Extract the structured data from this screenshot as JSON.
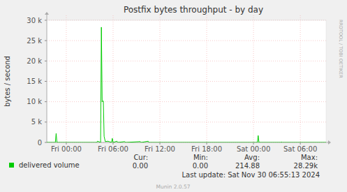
{
  "chart_data": {
    "type": "line",
    "title": "Postfix bytes throughput - by day",
    "y_label": "bytes / second",
    "watermark": "RRDTOOL / TOBI OETIKER",
    "x": [
      -2.5,
      -1.4,
      -1.3,
      -1.2,
      3.9,
      4.0,
      4.4,
      4.5,
      4.6,
      4.75,
      4.85,
      5.0,
      5.3,
      5.5,
      5.8,
      5.9,
      6.0,
      6.5,
      6.6,
      7.5,
      7.6,
      9.5,
      9.6,
      10.5,
      10.6,
      24.5,
      24.6,
      24.7,
      27.5,
      27.6,
      27.7,
      33.3
    ],
    "series": [
      {
        "name": "delivered volume",
        "color": "#00cc00",
        "values": [
          0,
          0,
          2200,
          0,
          0,
          300,
          0,
          28300,
          10000,
          10200,
          1500,
          200,
          300,
          200,
          0,
          1000,
          0,
          300,
          0,
          200,
          0,
          200,
          0,
          300,
          0,
          0,
          1700,
          0,
          0,
          100,
          0,
          0
        ]
      }
    ],
    "xlim": [
      -2.5,
      33.3
    ],
    "xticks": [
      {
        "value": 0,
        "label": "Fri 00:00"
      },
      {
        "value": 6,
        "label": "Fri 06:00"
      },
      {
        "value": 12,
        "label": "Fri 12:00"
      },
      {
        "value": 18,
        "label": "Fri 18:00"
      },
      {
        "value": 24,
        "label": "Sat 00:00"
      },
      {
        "value": 30,
        "label": "Sat 06:00"
      }
    ],
    "ylim": [
      0,
      30000
    ],
    "yticks": [
      0,
      {
        "value": 5000,
        "label": "5 k"
      },
      {
        "value": 10000,
        "label": "10 k"
      },
      {
        "value": 15000,
        "label": "15 k"
      },
      {
        "value": 20000,
        "label": "20 k"
      },
      {
        "value": 25000,
        "label": "25 k"
      },
      {
        "value": 30000,
        "label": "30 k"
      }
    ],
    "grid": true,
    "summary": [
      {
        "label": "Cur:",
        "value": "0.00"
      },
      {
        "label": "Min:",
        "value": "0.00"
      },
      {
        "label": "Avg:",
        "value": "214.88"
      },
      {
        "label": "Max:",
        "value": "28.29k"
      }
    ],
    "footer": "Last update: Sat Nov 30 06:55:13 2024",
    "credit": "Munin 2.0.57"
  }
}
